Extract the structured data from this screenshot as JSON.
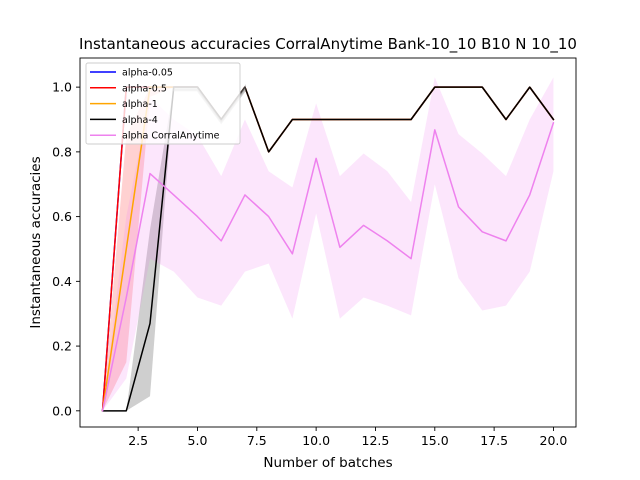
{
  "chart_data": {
    "type": "line",
    "title": "Instantaneous accuracies CorralAnytime Bank-10_10 B10 N 10_10",
    "xlabel": "Number of batches",
    "ylabel": "Instantaneous accuracies",
    "xlim": [
      0.05,
      20.95
    ],
    "ylim": [
      -0.05,
      1.09
    ],
    "xticks": [
      2.5,
      5.0,
      7.5,
      10.0,
      12.5,
      15.0,
      17.5,
      20.0
    ],
    "xtick_labels": [
      "2.5",
      "5.0",
      "7.5",
      "10.0",
      "12.5",
      "15.0",
      "17.5",
      "20.0"
    ],
    "yticks": [
      0.0,
      0.2,
      0.4,
      0.6,
      0.8,
      1.0
    ],
    "ytick_labels": [
      "0.0",
      "0.2",
      "0.4",
      "0.6",
      "0.8",
      "1.0"
    ],
    "grid": false,
    "legend_position": "top-left",
    "x": [
      1,
      2,
      3,
      4,
      5,
      6,
      7,
      8,
      9,
      10,
      11,
      12,
      13,
      14,
      15,
      16,
      17,
      18,
      19,
      20
    ],
    "series": [
      {
        "name": "alpha-0.05",
        "color": "#0000ff",
        "values": [
          0.0,
          1.0,
          1.0,
          1.0,
          1.0,
          0.9,
          1.0,
          0.8,
          0.9,
          0.9,
          0.9,
          0.9,
          0.9,
          0.9,
          1.0,
          1.0,
          1.0,
          0.9,
          1.0,
          0.9
        ],
        "band": null
      },
      {
        "name": "alpha-0.5",
        "color": "#ff0000",
        "values": [
          0.0,
          1.0,
          1.0,
          1.0,
          1.0,
          0.9,
          1.0,
          0.8,
          0.9,
          0.9,
          0.9,
          0.9,
          0.9,
          0.9,
          1.0,
          1.0,
          1.0,
          0.9,
          1.0,
          0.9
        ],
        "band": null
      },
      {
        "name": "alpha-1",
        "color": "#ffa500",
        "values": [
          0.0,
          0.5,
          1.0,
          1.0,
          1.0,
          0.9,
          1.0,
          0.8,
          0.9,
          0.9,
          0.9,
          0.9,
          0.9,
          0.9,
          1.0,
          1.0,
          1.0,
          0.9,
          1.0,
          0.9
        ],
        "band": {
          "fill": "#ff9999",
          "opacity": 0.45,
          "lower": [
            0.0,
            0.15,
            0.97,
            1.0,
            1.0,
            0.9,
            1.0,
            0.8,
            0.9,
            0.9,
            0.9,
            0.9,
            0.9,
            0.9,
            1.0,
            1.0,
            1.0,
            0.9,
            1.0,
            0.9
          ],
          "upper": [
            0.0,
            0.85,
            1.0,
            1.0,
            1.0,
            0.9,
            1.0,
            0.8,
            0.9,
            0.9,
            0.9,
            0.9,
            0.9,
            0.9,
            1.0,
            1.0,
            1.0,
            0.9,
            1.0,
            0.9
          ]
        }
      },
      {
        "name": "alpha-4",
        "color": "#000000",
        "values": [
          0.0,
          0.0,
          0.27,
          1.0,
          1.0,
          0.9,
          1.0,
          0.8,
          0.9,
          0.9,
          0.9,
          0.9,
          0.9,
          0.9,
          1.0,
          1.0,
          1.0,
          0.9,
          1.0,
          0.9
        ],
        "band": {
          "fill": "#808080",
          "opacity": 0.38,
          "lower": [
            0.0,
            0.0,
            0.045,
            1.0,
            1.0,
            0.9,
            1.0,
            0.8,
            0.9,
            0.9,
            0.9,
            0.9,
            0.9,
            0.9,
            1.0,
            1.0,
            1.0,
            0.9,
            1.0,
            0.9
          ],
          "upper": [
            0.0,
            0.0,
            0.56,
            1.0,
            1.0,
            0.9,
            1.0,
            0.8,
            0.9,
            0.9,
            0.9,
            0.9,
            0.9,
            0.9,
            1.0,
            1.0,
            1.0,
            0.9,
            1.0,
            0.9
          ]
        }
      },
      {
        "name": "alpha CorralAnytime",
        "color": "#ee82ee",
        "values": [
          0.0,
          0.35,
          0.733,
          0.667,
          0.6,
          0.525,
          0.667,
          0.6,
          0.485,
          0.78,
          0.505,
          0.573,
          0.525,
          0.47,
          0.868,
          0.63,
          0.553,
          0.525,
          0.667,
          0.89
        ],
        "band": {
          "fill": "#ee82ee",
          "opacity": 0.2,
          "lower": [
            0.0,
            0.1,
            0.47,
            0.43,
            0.35,
            0.325,
            0.43,
            0.455,
            0.285,
            0.61,
            0.285,
            0.35,
            0.325,
            0.295,
            0.7,
            0.41,
            0.31,
            0.325,
            0.43,
            0.74
          ],
          "upper": [
            0.0,
            0.6,
            0.97,
            0.9,
            0.85,
            0.725,
            0.9,
            0.74,
            0.69,
            0.95,
            0.725,
            0.795,
            0.74,
            0.645,
            1.03,
            0.855,
            0.795,
            0.725,
            0.9,
            1.03
          ]
        }
      }
    ],
    "overlay_band": {
      "fill": "#888888",
      "opacity": 0.38,
      "x": [
        4,
        5,
        6,
        7
      ],
      "lower": [
        0.99,
        0.99,
        0.89,
        0.99
      ],
      "upper": [
        1.0,
        1.0,
        0.9,
        1.0
      ]
    }
  }
}
